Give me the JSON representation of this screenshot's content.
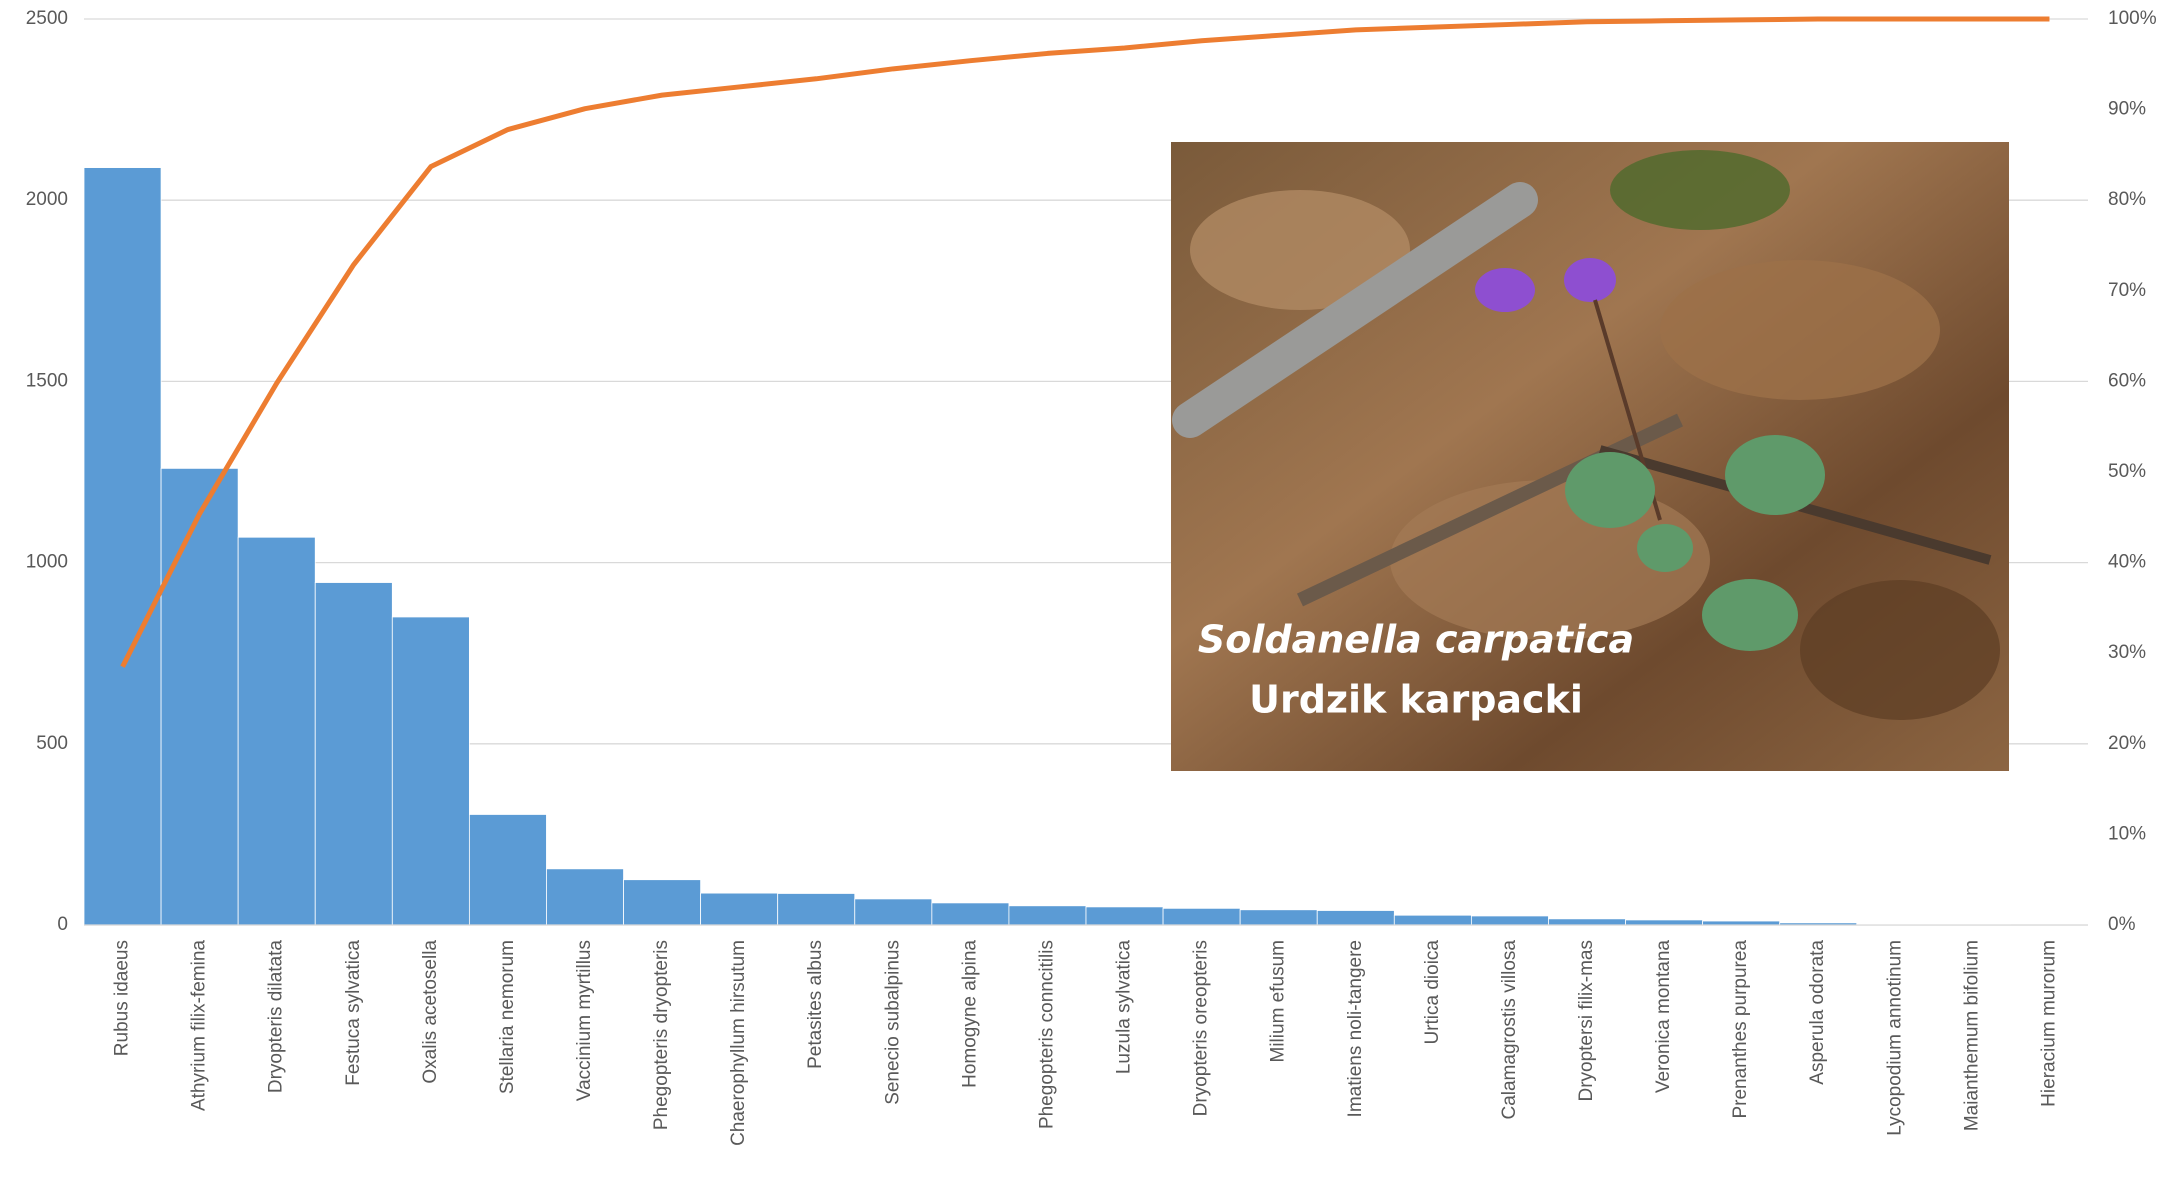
{
  "chart_data": {
    "type": "pareto",
    "categories": [
      "Rubus idaeus",
      "Athyrium filix-femina",
      "Dryopteris dilatata",
      "Festuca sylvatica",
      "Oxalis acetosella",
      "Stellaria nemorum",
      "Vaccinium myrtillus",
      "Phegopteris dryopteris",
      "Chaerophyllum hirsutum",
      "Petasites albus",
      "Senecio subalpinus",
      "Homogyne alpina",
      "Phegopteris conncitilis",
      "Luzula sylvatica",
      "Dryopteris oreopteris",
      "Milium efusum",
      "Imatiens noli-tangere",
      "Urtica dioica",
      "Calamagrostis villosa",
      "Dryoptersi filix-mas",
      "Veronica montana",
      "Prenanthes purpurea",
      "Asperula odorata",
      "Lycopodium annotinum",
      "Maianthemum bifolium",
      "Hieracium murorum"
    ],
    "series": [
      {
        "color": "#5b9bd5",
        "values": [
          2090,
          1260,
          1070,
          945,
          850,
          305,
          155,
          125,
          88,
          87,
          72,
          61,
          53,
          50,
          46,
          42,
          40,
          27,
          25,
          17,
          14,
          11,
          6,
          2,
          2,
          1
        ]
      },
      {
        "color": "#ed7d31",
        "axis": "y2",
        "values": [
          28.5,
          45.4,
          59.8,
          72.9,
          83.7,
          87.8,
          90.1,
          91.6,
          92.5,
          93.4,
          94.5,
          95.4,
          96.2,
          96.8,
          97.6,
          98.2,
          98.8,
          99.1,
          99.4,
          99.7,
          99.8,
          99.9,
          100,
          100,
          100,
          100
        ]
      }
    ],
    "ylim": [
      0,
      2500
    ],
    "yticks": [
      0,
      500,
      1000,
      1500,
      2000,
      2500
    ],
    "y2lim": [
      0,
      100
    ],
    "y2ticks": [
      {
        "value": 0,
        "label": "0%"
      },
      {
        "value": 10,
        "label": "10%"
      },
      {
        "value": 20,
        "label": "20%"
      },
      {
        "value": 30,
        "label": "30%"
      },
      {
        "value": 40,
        "label": "40%"
      },
      {
        "value": 50,
        "label": "50%"
      },
      {
        "value": 60,
        "label": "60%"
      },
      {
        "value": 70,
        "label": "70%"
      },
      {
        "value": 80,
        "label": "80%"
      },
      {
        "value": 90,
        "label": "90%"
      },
      {
        "value": 100,
        "label": "100%"
      }
    ],
    "grid": true
  },
  "inset": {
    "caption_latin": "Soldanella carpatica",
    "caption_polish": "Urdzik karpacki"
  }
}
